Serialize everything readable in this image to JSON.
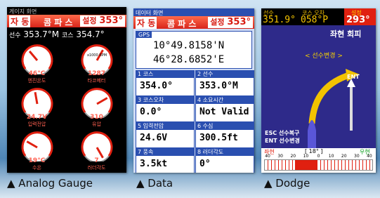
{
  "gauge_screen": {
    "title": "게이지 화면",
    "mode": "자 동",
    "source": "콤 파 스",
    "set_label": "설정",
    "set_value": "353°",
    "heading_label": "선수",
    "heading": "353.7°M",
    "course_label": "코스",
    "course": "354.7°",
    "gauges": [
      {
        "value": "46°C",
        "label": "엔진온도"
      },
      {
        "value": "1287",
        "label": "타코메터",
        "unit": "x1000 RPM"
      },
      {
        "value": "24.7V",
        "label": "입력전압"
      },
      {
        "value": "310",
        "label": "유압"
      },
      {
        "value": "19°C",
        "label": "수온"
      },
      {
        "value": "7",
        "label": "러더각도"
      }
    ],
    "caption": "▲ Analog Gauge"
  },
  "data_screen": {
    "title": "데이터 화면",
    "mode": "자 동",
    "source": "콤 파 스",
    "set_label": "설정",
    "set_value": "353°",
    "gps_label": "GPS",
    "latitude": "10°49.8158'N",
    "longitude": "46°28.6852'E",
    "cells": [
      {
        "index": "1",
        "label": "코스",
        "value": "354.0°"
      },
      {
        "index": "2",
        "label": "선수",
        "value": "353.0°M"
      },
      {
        "index": "3",
        "label": "코스오차",
        "value": "0.0°"
      },
      {
        "index": "4",
        "label": "소요시간",
        "value": "Not Valid"
      },
      {
        "index": "5",
        "label": "입력전압",
        "value": "24.6V"
      },
      {
        "index": "6",
        "label": "수심",
        "value": "300.5ft"
      },
      {
        "index": "7",
        "label": "풍속",
        "value": "3.5kt"
      },
      {
        "index": "8",
        "label": "러더각도",
        "value": "0°"
      }
    ],
    "caption": "▲ Data"
  },
  "dodge_screen": {
    "heading_label": "선수",
    "heading": "351.9°",
    "error_label": "코스 오차",
    "error": "058°P",
    "set_label": "설정",
    "set_value": "293°",
    "mode_title": "좌현 회피",
    "change_hint": "< 선수변경 >",
    "ent_marker": "ENT",
    "esc_help": "ESC 선수복구",
    "ent_help": "ENT 선수변경",
    "port": "좌현",
    "rudder": "[ 18° ]",
    "starboard": "우현",
    "scale": [
      40,
      30,
      20,
      10,
      0,
      10,
      20,
      30,
      40
    ],
    "caption": "▲ Dodge"
  }
}
